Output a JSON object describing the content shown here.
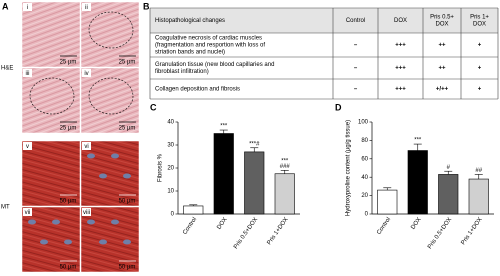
{
  "panel_a": {
    "label": "A",
    "stains": [
      {
        "name": "H&E",
        "images": [
          {
            "label": "i",
            "scale": "25 µm"
          },
          {
            "label": "ii",
            "scale": "25 µm"
          },
          {
            "label": "iii",
            "scale": "25 µm"
          },
          {
            "label": "iv",
            "scale": "25 µm"
          }
        ]
      },
      {
        "name": "MT",
        "images": [
          {
            "label": "v",
            "scale": "50 µm"
          },
          {
            "label": "vi",
            "scale": "50 µm"
          },
          {
            "label": "vii",
            "scale": "50 µm"
          },
          {
            "label": "viii",
            "scale": "50 µm"
          }
        ]
      }
    ]
  },
  "table": {
    "label": "B",
    "header": [
      [
        "Histopathological changes"
      ],
      [
        "Control"
      ],
      [
        "DOX"
      ],
      [
        "Pris 0.5+",
        "DOX"
      ],
      [
        "Pris 1+",
        "DOX"
      ]
    ],
    "rows": [
      [
        [
          "Coagulative necrosis of cardiac muscles",
          "(fragmentation and resportion with loss of",
          "striation bands and nuclei)"
        ],
        "–",
        "+++",
        "++",
        "+"
      ],
      [
        [
          "Granulation tissue (new blood capillaries and",
          "fibroblast infiltration)"
        ],
        "–",
        "+++",
        "++",
        "+"
      ],
      [
        [
          "Collagen deposition and fibrosis"
        ],
        "–",
        "+++",
        "+/++",
        "+"
      ]
    ]
  },
  "chart_data": [
    {
      "type": "bar",
      "label": "C",
      "y_label": "Fibrosis %",
      "categories": [
        "Control",
        "DOX",
        "Pris 0.5+DOX",
        "Pris 1+DOX"
      ],
      "values": [
        3.5,
        35,
        27,
        17.5
      ],
      "errors": [
        0.5,
        1.5,
        1.8,
        1.5
      ],
      "colors": [
        "#ffffff",
        "#000000",
        "#606060",
        "#d0d0d0"
      ],
      "annotations": [
        [],
        [
          "***"
        ],
        [
          "***#"
        ],
        [
          "***",
          "###"
        ]
      ],
      "ylim": [
        0,
        40
      ],
      "yticks": [
        0,
        10,
        20,
        30,
        40
      ]
    },
    {
      "type": "bar",
      "label": "D",
      "y_label": "Hydroxyproline content (µg/g tissue)",
      "categories": [
        "Control",
        "DOX",
        "Pris 0.5+DOX",
        "Pris 1+DOX"
      ],
      "values": [
        26,
        69,
        43,
        38
      ],
      "errors": [
        2.5,
        7,
        3.5,
        5
      ],
      "colors": [
        "#ffffff",
        "#000000",
        "#606060",
        "#d0d0d0"
      ],
      "annotations": [
        [],
        [
          "***"
        ],
        [
          "#"
        ],
        [
          "##"
        ]
      ],
      "ylim": [
        0,
        100
      ],
      "yticks": [
        0,
        20,
        40,
        60,
        80,
        100
      ]
    }
  ]
}
